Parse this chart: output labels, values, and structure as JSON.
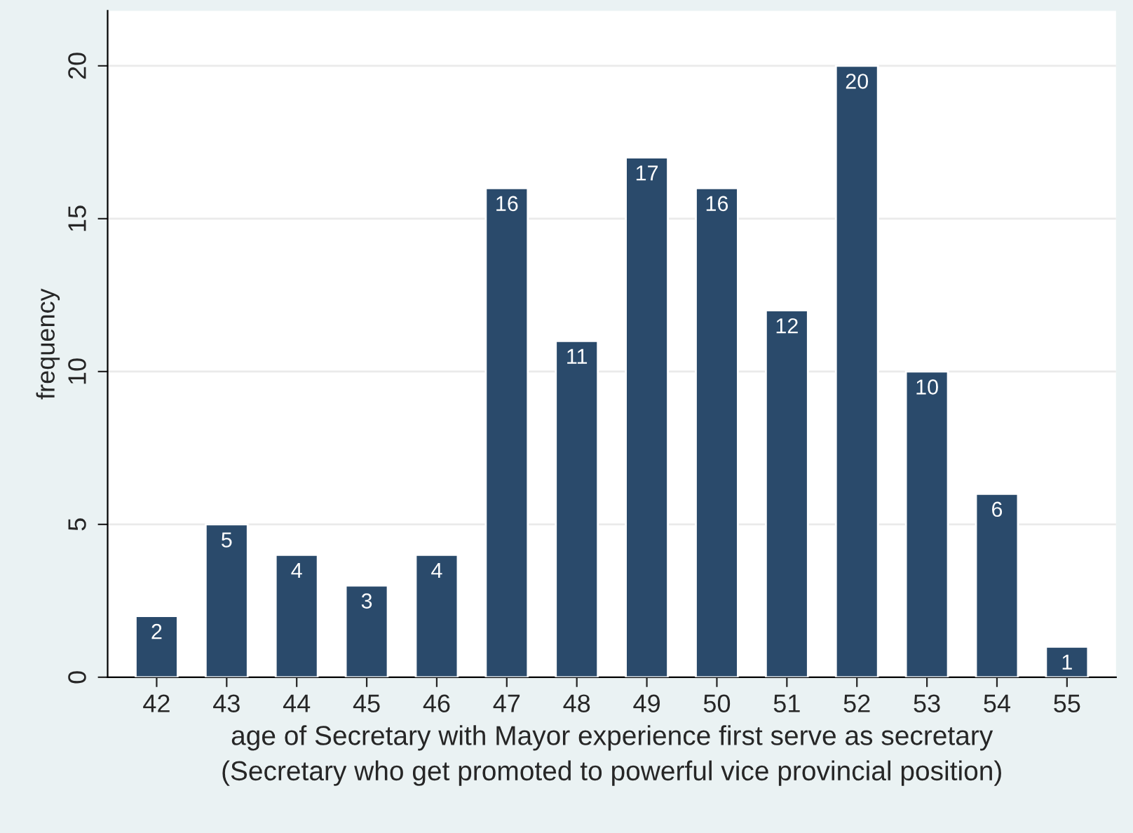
{
  "chart_data": {
    "type": "bar",
    "xlabel": "age of Secretary with Mayor experience first serve as secretary\n(Secretary who get promoted to powerful vice provincial position)",
    "ylabel": "frequency",
    "categories": [
      "42",
      "43",
      "44",
      "45",
      "46",
      "47",
      "48",
      "49",
      "50",
      "51",
      "52",
      "53",
      "54",
      "55"
    ],
    "values": [
      2,
      5,
      4,
      3,
      4,
      16,
      11,
      17,
      16,
      12,
      20,
      10,
      6,
      1
    ],
    "color": "#2a4a6b",
    "ylim": [
      0,
      21.8
    ],
    "yticks": [
      0,
      5,
      10,
      15,
      20
    ],
    "grid": "y",
    "data_labels": true
  }
}
